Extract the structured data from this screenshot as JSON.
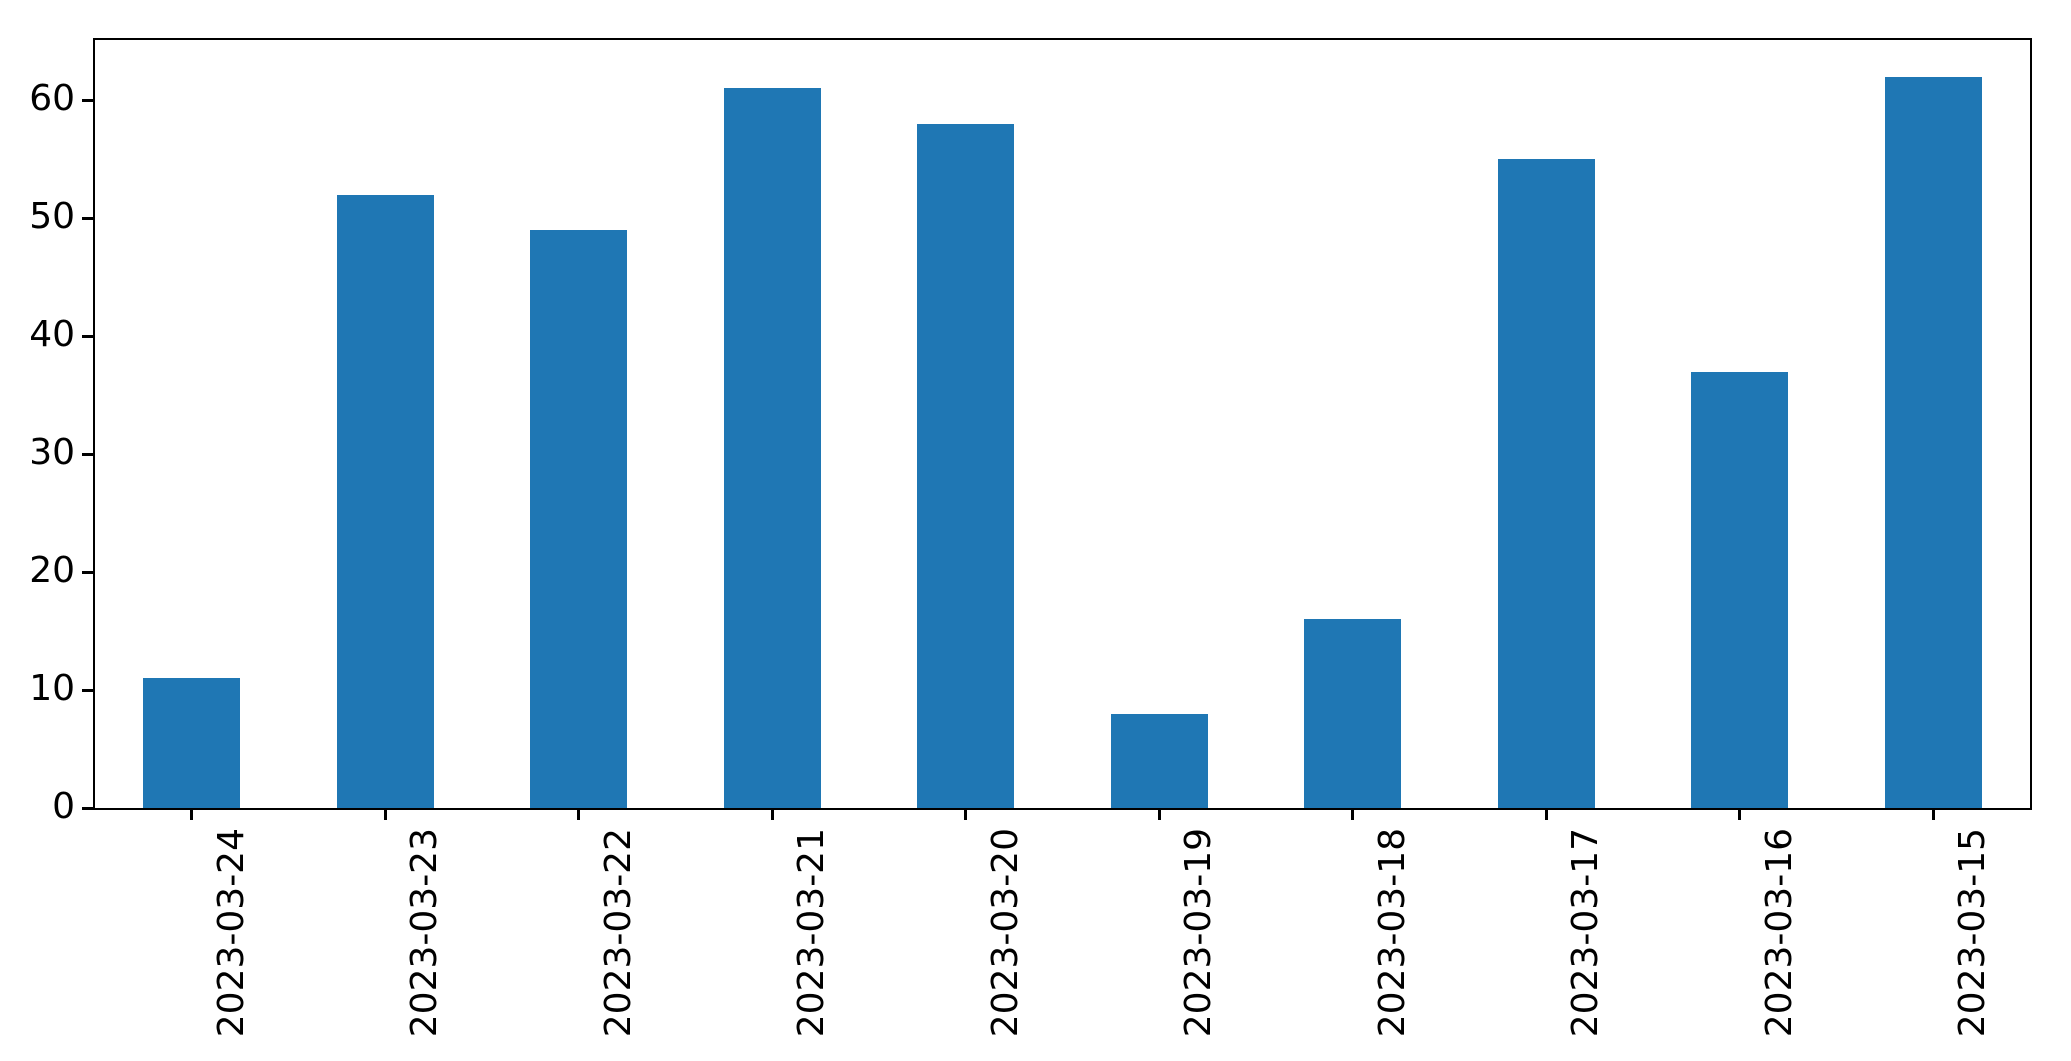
{
  "chart_data": {
    "type": "bar",
    "title": "",
    "xlabel": "",
    "ylabel": "",
    "categories": [
      "2023-03-24",
      "2023-03-23",
      "2023-03-22",
      "2023-03-21",
      "2023-03-20",
      "2023-03-19",
      "2023-03-18",
      "2023-03-17",
      "2023-03-16",
      "2023-03-15"
    ],
    "values": [
      11,
      52,
      49,
      61,
      58,
      8,
      16,
      55,
      37,
      62
    ],
    "yticks": [
      0,
      10,
      20,
      30,
      40,
      50,
      60
    ],
    "ylim": [
      0,
      65.1
    ],
    "bar_color": "#1f77b4",
    "axis_color": "#000000",
    "background_color": "#ffffff",
    "grid": false,
    "legend": false,
    "x_tick_rotation_deg": 90,
    "bar_width_fraction": 0.5
  }
}
